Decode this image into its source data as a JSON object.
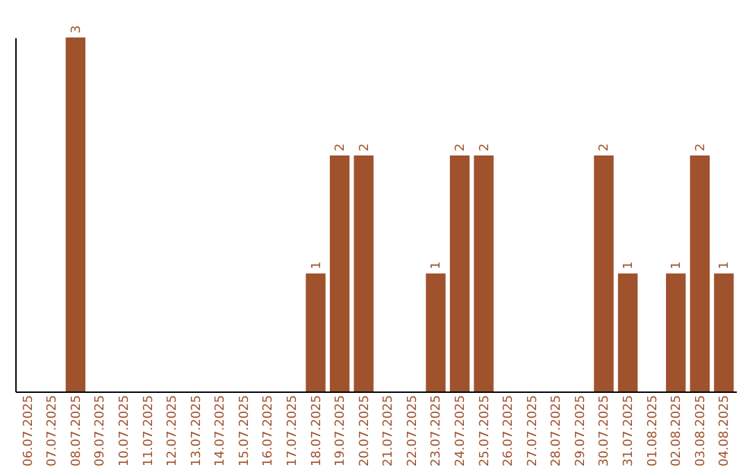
{
  "chart_data": {
    "type": "bar",
    "categories": [
      "06.07.2025",
      "07.07.2025",
      "08.07.2025",
      "09.07.2025",
      "10.07.2025",
      "11.07.2025",
      "12.07.2025",
      "13.07.2025",
      "14.07.2025",
      "15.07.2025",
      "16.07.2025",
      "17.07.2025",
      "18.07.2025",
      "19.07.2025",
      "20.07.2025",
      "21.07.2025",
      "22.07.2025",
      "23.07.2025",
      "24.07.2025",
      "25.07.2025",
      "26.07.2025",
      "27.07.2025",
      "28.07.2025",
      "29.07.2025",
      "30.07.2025",
      "31.07.2025",
      "01.08.2025",
      "02.08.2025",
      "03.08.2025",
      "04.08.2025"
    ],
    "values": [
      0,
      0,
      3,
      0,
      0,
      0,
      0,
      0,
      0,
      0,
      0,
      0,
      1,
      2,
      2,
      0,
      0,
      1,
      2,
      2,
      0,
      0,
      0,
      0,
      2,
      1,
      0,
      1,
      2,
      1
    ],
    "value_labels": [
      null,
      null,
      "3",
      null,
      null,
      null,
      null,
      null,
      null,
      null,
      null,
      null,
      "1",
      "2",
      "2",
      null,
      null,
      "1",
      "2",
      "2",
      null,
      null,
      null,
      null,
      "2",
      "1",
      null,
      "1",
      "2",
      "1"
    ],
    "color": "#a0522d",
    "grid": false
  }
}
